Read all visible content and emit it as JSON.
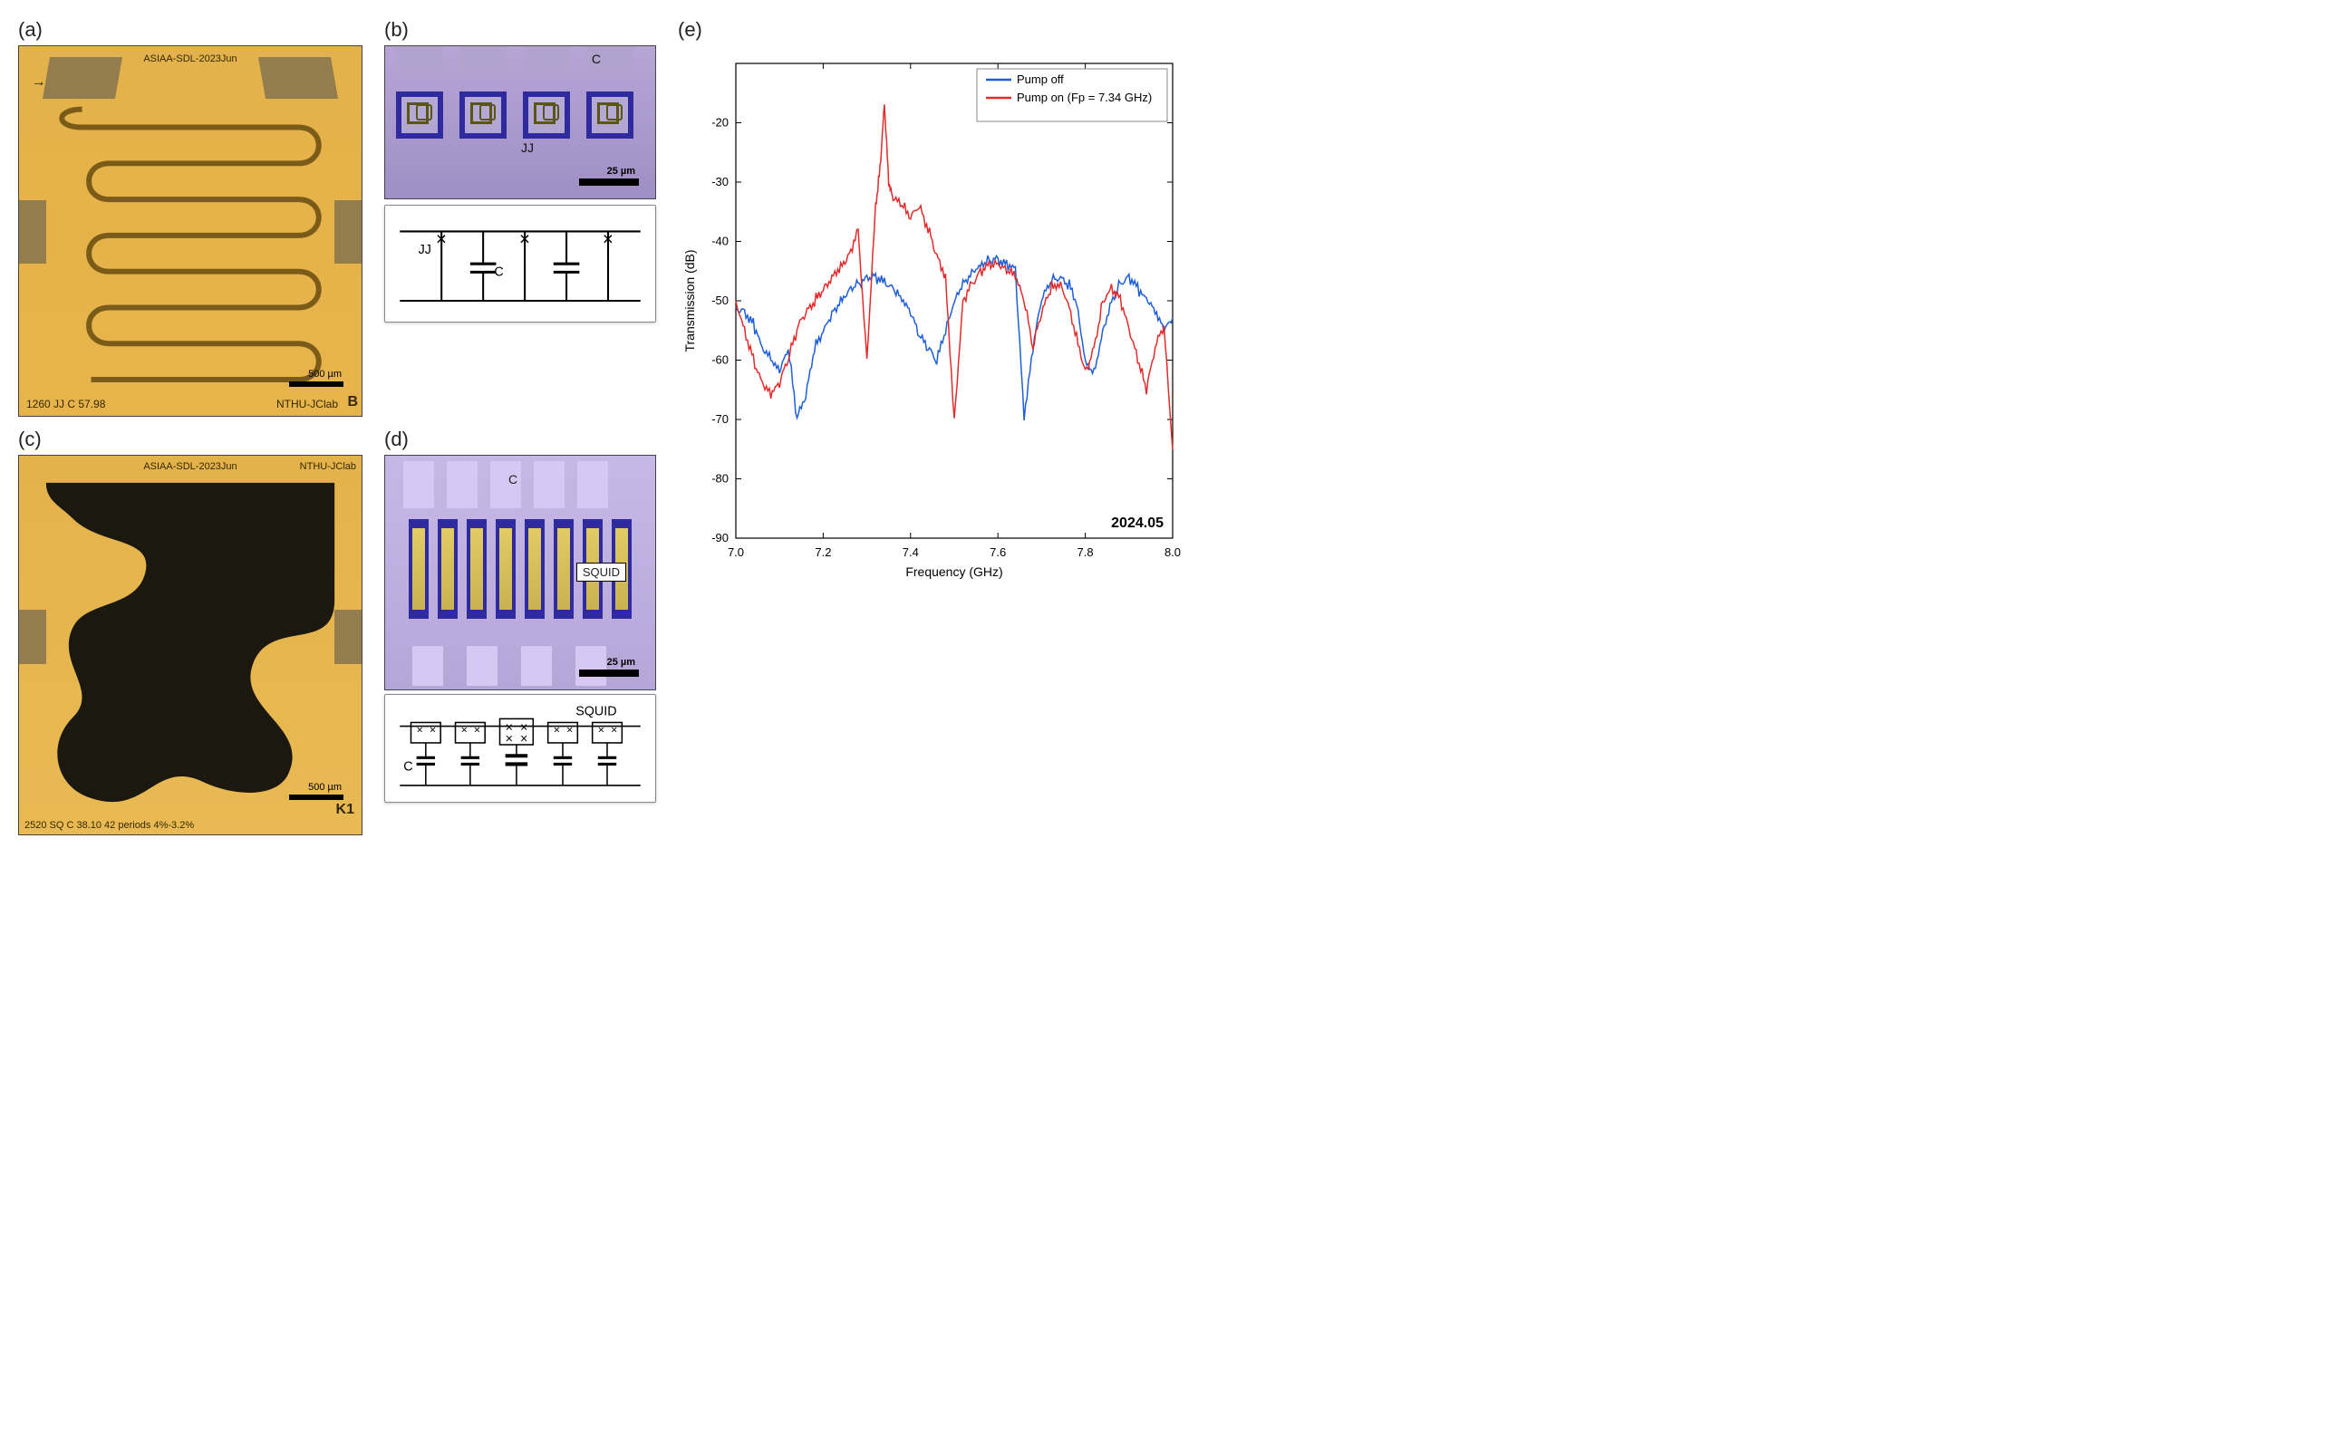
{
  "labels": {
    "a": "(a)",
    "b": "(b)",
    "c": "(c)",
    "d": "(d)",
    "e": "(e)"
  },
  "panel_a": {
    "type": "micrograph",
    "top_text": "ASIAA-SDL-2023Jun",
    "bottom_left": "1260 JJ   C 57.98",
    "bottom_right": "NTHU-JClab",
    "corner_letter": "B",
    "scalebar_um": "500 µm",
    "background_color": "#e4b24a",
    "trace_color": "#7a5c18",
    "pad_color": "rgba(80,80,80,0.55)"
  },
  "panel_b": {
    "type": "micrograph",
    "label_C": "C",
    "label_JJ": "JJ",
    "scalebar_um": "25 µm",
    "ring_color": "#2f2a9e",
    "schematic": {
      "jj_label": "JJ",
      "c_label": "C",
      "n_cells": 3
    }
  },
  "panel_c": {
    "type": "micrograph",
    "top_text": "ASIAA-SDL-2023Jun",
    "top_right": "NTHU-JClab",
    "bottom_text": "2520 SQ C 38.10  42 periods   4%-3.2%",
    "corner_letter": "K1",
    "scalebar_um": "500 µm",
    "dark_color": "#1b1810",
    "gold_color": "#e4b24a"
  },
  "panel_d": {
    "type": "micrograph",
    "label_C": "C",
    "label_SQUID": "SQUID",
    "scalebar_um": "25 µm",
    "schematic": {
      "squid_label": "SQUID",
      "c_label": "C",
      "n_cells": 5
    }
  },
  "chart": {
    "type": "line",
    "title_date": "2024.05",
    "x_label": "Frequency (GHz)",
    "y_label": "Transmission (dB)",
    "x_lim": [
      7.0,
      8.0
    ],
    "x_ticks": [
      7.0,
      7.2,
      7.4,
      7.6,
      7.8,
      8.0
    ],
    "y_lim": [
      -90,
      -10
    ],
    "y_ticks": [
      -90,
      -80,
      -70,
      -60,
      -50,
      -40,
      -30,
      -20
    ],
    "axis_color": "#000000",
    "grid_color": "none",
    "background_color": "#ffffff",
    "label_fontsize": 14,
    "tick_fontsize": 13,
    "legend": {
      "position": "top-right",
      "border_color": "#888888",
      "entries": [
        {
          "label": "Pump off",
          "color": "#1f5fd6"
        },
        {
          "label": "Pump on (Fp = 7.34 GHz)",
          "color": "#e22b2b"
        }
      ]
    },
    "series": [
      {
        "name": "Pump off",
        "color": "#1f5fd6",
        "linewidth": 1.5,
        "x": [
          7.0,
          7.02,
          7.04,
          7.06,
          7.08,
          7.1,
          7.12,
          7.14,
          7.16,
          7.18,
          7.2,
          7.22,
          7.24,
          7.26,
          7.28,
          7.3,
          7.32,
          7.34,
          7.36,
          7.38,
          7.4,
          7.42,
          7.44,
          7.46,
          7.48,
          7.5,
          7.52,
          7.54,
          7.56,
          7.58,
          7.6,
          7.62,
          7.64,
          7.66,
          7.68,
          7.7,
          7.72,
          7.74,
          7.76,
          7.78,
          7.8,
          7.82,
          7.84,
          7.86,
          7.88,
          7.9,
          7.92,
          7.94,
          7.96,
          7.98,
          8.0
        ],
        "y": [
          -51,
          -52,
          -54,
          -58,
          -60,
          -62,
          -58,
          -70,
          -66,
          -58,
          -55,
          -52,
          -50,
          -48,
          -47,
          -46,
          -46,
          -47,
          -48,
          -50,
          -52,
          -56,
          -58,
          -60,
          -55,
          -50,
          -47,
          -45,
          -44,
          -43,
          -43,
          -44,
          -45,
          -70,
          -58,
          -50,
          -47,
          -46,
          -47,
          -50,
          -60,
          -62,
          -55,
          -50,
          -47,
          -46,
          -48,
          -50,
          -52,
          -55,
          -53
        ]
      },
      {
        "name": "Pump on (Fp = 7.34 GHz)",
        "color": "#e22b2b",
        "linewidth": 1.5,
        "x": [
          7.0,
          7.02,
          7.04,
          7.06,
          7.08,
          7.1,
          7.12,
          7.14,
          7.16,
          7.18,
          7.2,
          7.22,
          7.24,
          7.26,
          7.28,
          7.3,
          7.32,
          7.33,
          7.34,
          7.35,
          7.36,
          7.38,
          7.4,
          7.42,
          7.44,
          7.46,
          7.48,
          7.5,
          7.52,
          7.54,
          7.56,
          7.58,
          7.6,
          7.62,
          7.64,
          7.66,
          7.68,
          7.7,
          7.72,
          7.74,
          7.76,
          7.78,
          7.8,
          7.82,
          7.84,
          7.86,
          7.88,
          7.9,
          7.92,
          7.94,
          7.96,
          7.98,
          8.0
        ],
        "y": [
          -50,
          -55,
          -60,
          -64,
          -66,
          -64,
          -60,
          -55,
          -52,
          -50,
          -48,
          -46,
          -44,
          -42,
          -38,
          -60,
          -34,
          -28,
          -17,
          -30,
          -33,
          -34,
          -36,
          -34,
          -38,
          -42,
          -46,
          -70,
          -50,
          -47,
          -45,
          -44,
          -44,
          -45,
          -46,
          -50,
          -58,
          -52,
          -48,
          -47,
          -50,
          -56,
          -62,
          -58,
          -50,
          -48,
          -50,
          -55,
          -60,
          -65,
          -58,
          -54,
          -75
        ]
      }
    ]
  }
}
